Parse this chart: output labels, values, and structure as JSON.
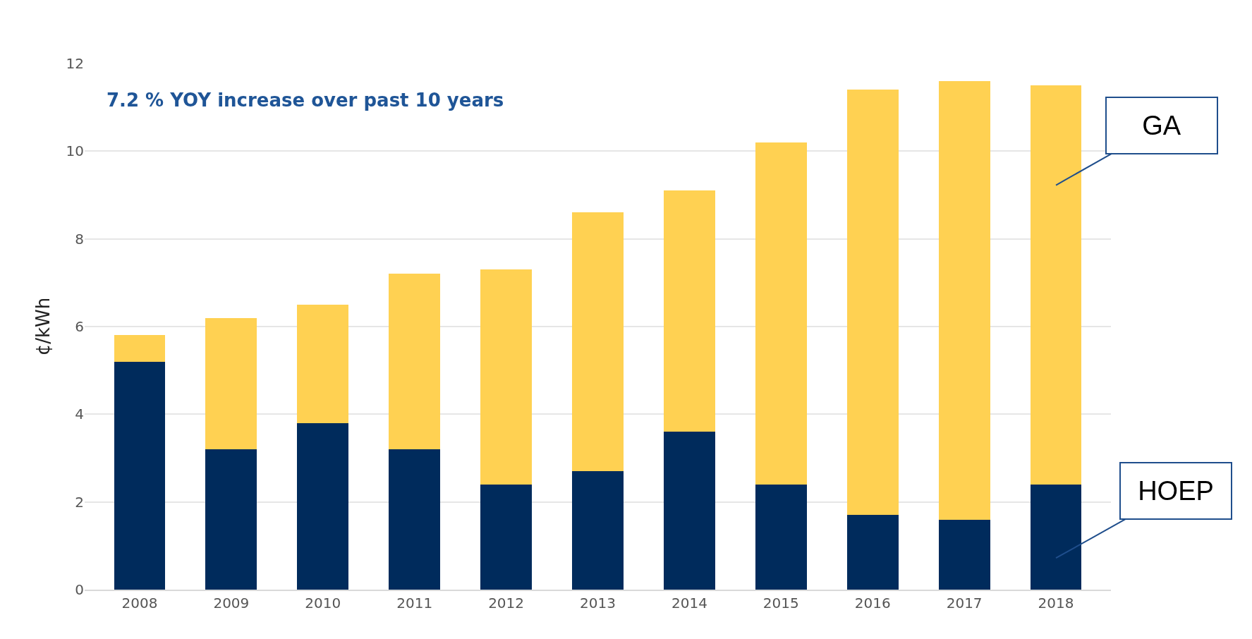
{
  "chart_data": {
    "type": "bar",
    "stacked": true,
    "ylabel": "¢/kWh",
    "categories": [
      "2008",
      "2009",
      "2010",
      "2011",
      "2012",
      "2013",
      "2014",
      "2015",
      "2016",
      "2017",
      "2018"
    ],
    "series": [
      {
        "name": "HOEP",
        "color": "#002b5c",
        "values": [
          5.2,
          3.2,
          3.8,
          3.2,
          2.4,
          2.7,
          3.6,
          2.4,
          1.7,
          1.6,
          2.4
        ]
      },
      {
        "name": "GA",
        "color": "#ffd152",
        "values": [
          0.6,
          3.0,
          2.7,
          4.0,
          4.9,
          5.9,
          5.5,
          7.8,
          9.7,
          10.0,
          9.1
        ]
      }
    ],
    "ylim": [
      0,
      12
    ],
    "yticks": [
      0,
      2,
      4,
      6,
      8,
      10,
      12
    ],
    "grid": "y",
    "legend": false,
    "annotations": [
      "7.2 % YOY increase over past 10 years"
    ]
  }
}
